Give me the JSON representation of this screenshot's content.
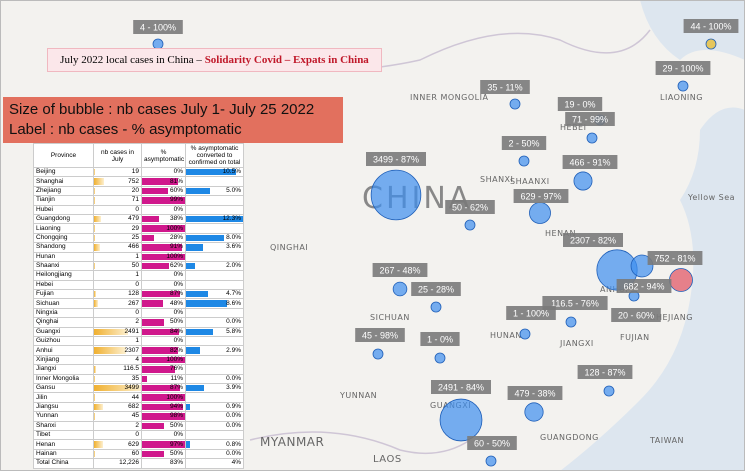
{
  "banner": {
    "lead": "July 2022 local cases in China – ",
    "highlight": "Solidarity Covid – Expats in China"
  },
  "legend": {
    "line1": "Size of  bubble : nb cases July 1- July 25 2022",
    "line2": "Label : nb cases - % asymptomatic"
  },
  "table": {
    "header": [
      "Province",
      "nb cases in July",
      "% asymptomatic",
      "% asymptomatic converted to confirmed on total"
    ],
    "rows": [
      [
        "Beijing",
        19,
        "0%",
        "10.5%"
      ],
      [
        "Shanghai",
        752,
        "81%",
        ""
      ],
      [
        "Zhejiang",
        20,
        "60%",
        "5.0%"
      ],
      [
        "Tianjin",
        71,
        "99%",
        ""
      ],
      [
        "Hubei",
        0,
        "0%",
        ""
      ],
      [
        "Guangdong",
        479,
        "38%",
        "12.3%"
      ],
      [
        "Liaoning",
        29,
        "100%",
        ""
      ],
      [
        "Chongqing",
        25,
        "28%",
        "8.0%"
      ],
      [
        "Shandong",
        466,
        "91%",
        "3.6%"
      ],
      [
        "Hunan",
        1,
        "100%",
        ""
      ],
      [
        "Shaanxi",
        50,
        "62%",
        "2.0%"
      ],
      [
        "Heilongjiang",
        1,
        "0%",
        ""
      ],
      [
        "Hebei",
        0,
        "0%",
        ""
      ],
      [
        "Fujian",
        128,
        "87%",
        "4.7%"
      ],
      [
        "Sichuan",
        267,
        "48%",
        "8.6%"
      ],
      [
        "Ningxia",
        0,
        "0%",
        ""
      ],
      [
        "Qinghai",
        2,
        "50%",
        "0.0%"
      ],
      [
        "Guangxi",
        2491,
        "84%",
        "5.8%"
      ],
      [
        "Guizhou",
        1,
        "0%",
        ""
      ],
      [
        "Anhui",
        2307,
        "82%",
        "2.9%"
      ],
      [
        "Xinjiang",
        4,
        "100%",
        ""
      ],
      [
        "Jiangxi",
        116.5,
        "76%",
        ""
      ],
      [
        "Inner Mongolia",
        35,
        "11%",
        "0.0%"
      ],
      [
        "Gansu",
        3499,
        "87%",
        "3.9%"
      ],
      [
        "Jilin",
        44,
        "100%",
        ""
      ],
      [
        "Jiangsu",
        682,
        "94%",
        "0.9%"
      ],
      [
        "Yunnan",
        45,
        "98%",
        "0.0%"
      ],
      [
        "Shanxi",
        2,
        "50%",
        "0.0%"
      ],
      [
        "Tibet",
        0,
        "0%",
        ""
      ],
      [
        "Henan",
        629,
        "97%",
        "0.8%"
      ],
      [
        "Hainan",
        60,
        "50%",
        "0.0%"
      ]
    ],
    "total": [
      "Total China",
      "12,226",
      "83%",
      "4%"
    ]
  },
  "bubbles": [
    {
      "label": "4 - 100%",
      "value": 4
    },
    {
      "label": "44 - 100%",
      "value": 44
    },
    {
      "label": "29 - 100%",
      "value": 29
    },
    {
      "label": "35 - 11%",
      "value": 35
    },
    {
      "label": "19 - 0%",
      "value": 19
    },
    {
      "label": "71 - 99%",
      "value": 71
    },
    {
      "label": "2 - 50%",
      "value": 2
    },
    {
      "label": "466 - 91%",
      "value": 466
    },
    {
      "label": "3499 - 87%",
      "value": 3499
    },
    {
      "label": "629 - 97%",
      "value": 629
    },
    {
      "label": "50 - 62%",
      "value": 50
    },
    {
      "label": "2307 - 82%",
      "value": 2307
    },
    {
      "label": "752 - 81%",
      "value": 752
    },
    {
      "label": "682 - 94%",
      "value": 682
    },
    {
      "label": "267 - 48%",
      "value": 267
    },
    {
      "label": "25 - 28%",
      "value": 25
    },
    {
      "label": "20 - 60%",
      "value": 20
    },
    {
      "label": "116.5 - 76%",
      "value": 116.5
    },
    {
      "label": "1 - 100%",
      "value": 1
    },
    {
      "label": "1 - 0%",
      "value": 1
    },
    {
      "label": "45 - 98%",
      "value": 45
    },
    {
      "label": "128 - 87%",
      "value": 128
    },
    {
      "label": "479 - 38%",
      "value": 479
    },
    {
      "label": "2491 - 84%",
      "value": 2491
    },
    {
      "label": "60 - 50%",
      "value": 60
    }
  ],
  "map_labels": [
    "CHINA",
    "INNER MONGOLIA",
    "LIAONING",
    "HEBEI",
    "SHANXI",
    "SHAANXI",
    "HENAN",
    "ANHUI",
    "JIANGXI",
    "HUNAN",
    "SICHUAN",
    "GUANGXI",
    "GUANGDONG",
    "FUJIAN",
    "YUNNAN",
    "MYANMAR",
    "LAOS",
    "TAIWAN",
    "Yellow Sea",
    "ZHEJIANG",
    "QINGHAI"
  ]
}
